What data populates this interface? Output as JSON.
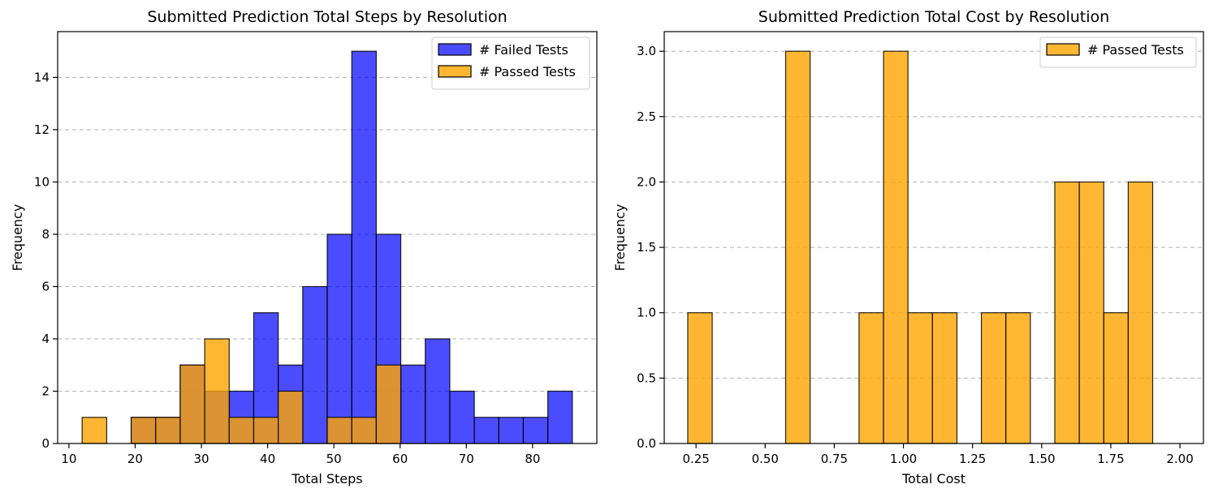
{
  "chart_data": [
    {
      "type": "histogram",
      "title": "Submitted Prediction Total Steps by Resolution",
      "xlabel": "Total Steps",
      "ylabel": "Frequency",
      "xlim": [
        8.3,
        89.7
      ],
      "ylim": [
        0,
        15.75
      ],
      "xticks": [
        10,
        20,
        30,
        40,
        50,
        60,
        70,
        80
      ],
      "yticks": [
        0,
        2,
        4,
        6,
        8,
        10,
        12,
        14
      ],
      "grid": "y-dashed",
      "legend_position": "top-right",
      "bin_edges": [
        12,
        15.7,
        19.4,
        23.1,
        26.8,
        30.5,
        34.2,
        37.9,
        41.6,
        45.3,
        49,
        52.7,
        56.4,
        60.1,
        63.8,
        67.5,
        71.2,
        74.9,
        78.6,
        82.3,
        86
      ],
      "series": [
        {
          "name": "# Failed Tests",
          "color": "#0000ff",
          "opacity": 0.7,
          "values": [
            0,
            0,
            1,
            1,
            3,
            2,
            2,
            5,
            3,
            6,
            8,
            15,
            8,
            3,
            4,
            2,
            1,
            1,
            1,
            2
          ]
        },
        {
          "name": "# Passed Tests",
          "color": "#ffa500",
          "opacity": 0.8,
          "values": [
            1,
            0,
            1,
            1,
            3,
            4,
            1,
            1,
            2,
            0,
            1,
            1,
            3,
            0,
            0,
            0,
            0,
            0,
            0,
            0
          ]
        }
      ]
    },
    {
      "type": "histogram",
      "title": "Submitted Prediction Total Cost by Resolution",
      "xlabel": "Total Cost",
      "ylabel": "Frequency",
      "xlim": [
        0.135,
        2.085
      ],
      "ylim": [
        0,
        3.15
      ],
      "xticks": [
        "0.25",
        "0.50",
        "0.75",
        "1.00",
        "1.25",
        "1.50",
        "1.75",
        "2.00"
      ],
      "yticks": [
        "0.0",
        "0.5",
        "1.0",
        "1.5",
        "2.0",
        "2.5",
        "3.0"
      ],
      "grid": "y-dashed",
      "legend_position": "top-right",
      "bin_edges": [
        0.22,
        0.3085,
        0.397,
        0.4855,
        0.574,
        0.6625,
        0.751,
        0.8395,
        0.928,
        1.0165,
        1.105,
        1.1935,
        1.282,
        1.3705,
        1.459,
        1.5475,
        1.636,
        1.7245,
        1.813,
        1.9015,
        1.99
      ],
      "series": [
        {
          "name": "# Passed Tests",
          "color": "#ffa500",
          "opacity": 0.8,
          "values": [
            1,
            0,
            0,
            0,
            3,
            0,
            0,
            1,
            3,
            1,
            1,
            0,
            1,
            1,
            0,
            2,
            2,
            1,
            2,
            0
          ]
        }
      ]
    }
  ]
}
